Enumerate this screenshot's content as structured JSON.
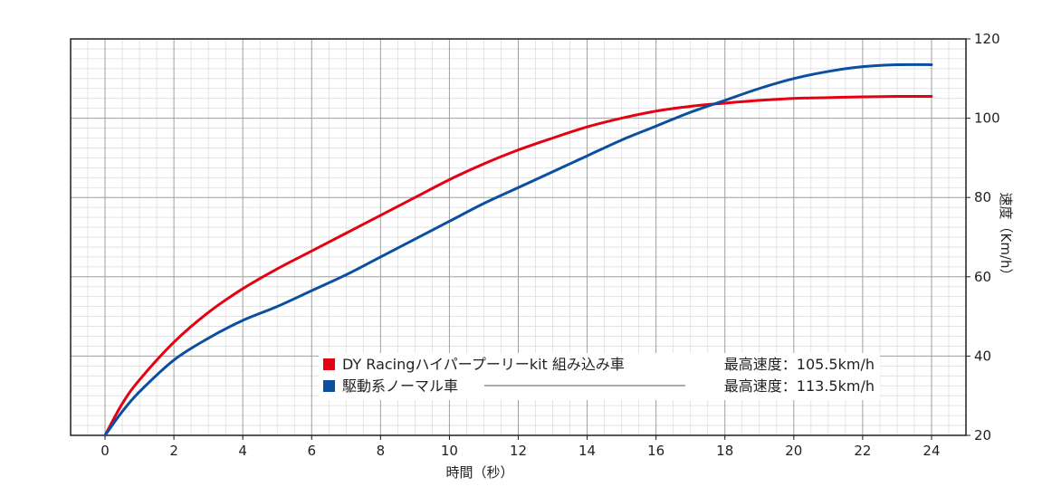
{
  "chart_data": {
    "type": "line",
    "xlabel": "時間（秒）",
    "ylabel": "速度（Km/h）",
    "xlim": [
      -1,
      25
    ],
    "ylim": [
      20,
      120
    ],
    "x_ticks": [
      0,
      2,
      4,
      6,
      8,
      10,
      12,
      14,
      16,
      18,
      20,
      22,
      24
    ],
    "y_ticks": [
      20,
      40,
      60,
      80,
      100,
      120
    ],
    "y_axis_side": "right",
    "grid": true,
    "legend_position": "bottom-center",
    "x": [
      0,
      0.5,
      1,
      2,
      3,
      4,
      5,
      6,
      7,
      8,
      9,
      10,
      11,
      12,
      13,
      14,
      15,
      16,
      17,
      18,
      19,
      20,
      21,
      22,
      23,
      24
    ],
    "series": [
      {
        "name": "DY Racingハイパープーリーkit 組み込み車",
        "legend_extra": "最高速度：105.5km/h",
        "color": "#e60012",
        "values": [
          20,
          28,
          34,
          43.5,
          51,
          57,
          62,
          66.5,
          71,
          75.5,
          80,
          84.5,
          88.5,
          92,
          95,
          97.8,
          100,
          101.8,
          103,
          103.8,
          104.5,
          105,
          105.2,
          105.4,
          105.5,
          105.5
        ]
      },
      {
        "name": "駆動系ノーマル車",
        "legend_extra": "最高速度：113.5km/h",
        "color": "#0a4fa0",
        "values": [
          20,
          26,
          31,
          39,
          44.5,
          49,
          52.5,
          56.5,
          60.5,
          65,
          69.5,
          74,
          78.5,
          82.5,
          86.5,
          90.5,
          94.5,
          98,
          101.5,
          104.5,
          107.5,
          110,
          111.8,
          113,
          113.5,
          113.5
        ]
      }
    ]
  }
}
